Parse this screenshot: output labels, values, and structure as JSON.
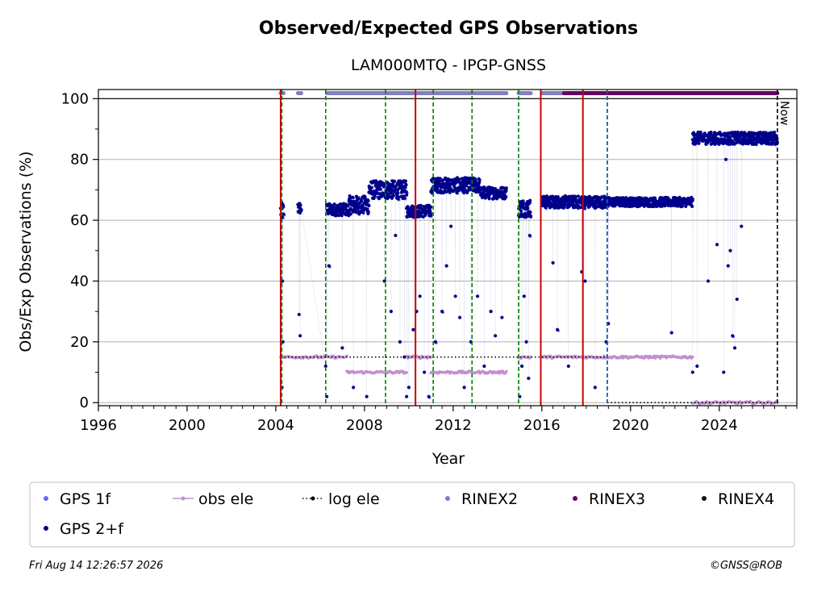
{
  "chart_data": {
    "type": "scatter",
    "title": "Observed/Expected GPS Observations",
    "subtitle": "LAM000MTQ - IPGP-GNSS",
    "xlabel": "Year",
    "ylabel": "Obs/Exp Observations (%)",
    "xlim": [
      1996,
      2027.5
    ],
    "ylim": [
      -1,
      103
    ],
    "xticks": [
      "1996",
      "2000",
      "2004",
      "2008",
      "2012",
      "2016",
      "2020",
      "2024"
    ],
    "xtick_values": [
      1996,
      2000,
      2004,
      2008,
      2012,
      2016,
      2020,
      2024
    ],
    "yticks": [
      "0",
      "20",
      "40",
      "60",
      "80",
      "100"
    ],
    "ytick_values": [
      0,
      20,
      40,
      60,
      80,
      100
    ],
    "grid": true,
    "now_label": "Now",
    "now_x": 2026.62,
    "colors": {
      "gps1f": "#6666ff",
      "gps2f": "#00008b",
      "obs_ele": "#c38fd0",
      "log_ele": "#000000",
      "rinex2": "#8080c0",
      "rinex3": "#660066",
      "rinex4": "#200020",
      "red_line": "#cc0000",
      "green_line": "#008000",
      "blue_line": "#1060b0"
    },
    "vlines": {
      "red": [
        2004.22,
        2010.3,
        2015.95,
        2017.85
      ],
      "green": [
        2004.27,
        2006.25,
        2008.95,
        2011.1,
        2012.85,
        2014.95
      ],
      "blue": [
        2018.95
      ]
    },
    "gps2f_segments": [
      {
        "x0": 2004.22,
        "x1": 2004.35,
        "mean": 63,
        "spread": 3
      },
      {
        "x0": 2005.0,
        "x1": 2005.15,
        "mean": 64,
        "spread": 2
      },
      {
        "x0": 2006.3,
        "x1": 2007.3,
        "mean": 63.5,
        "spread": 2
      },
      {
        "x0": 2007.3,
        "x1": 2008.2,
        "mean": 65,
        "spread": 3
      },
      {
        "x0": 2008.2,
        "x1": 2009.9,
        "mean": 70,
        "spread": 3
      },
      {
        "x0": 2009.9,
        "x1": 2011.0,
        "mean": 63,
        "spread": 2
      },
      {
        "x0": 2011.0,
        "x1": 2013.2,
        "mean": 71.5,
        "spread": 2.5
      },
      {
        "x0": 2013.2,
        "x1": 2014.4,
        "mean": 69,
        "spread": 2
      },
      {
        "x0": 2014.95,
        "x1": 2015.5,
        "mean": 64,
        "spread": 3
      },
      {
        "x0": 2016.0,
        "x1": 2019.0,
        "mean": 66,
        "spread": 2
      },
      {
        "x0": 2019.0,
        "x1": 2022.8,
        "mean": 66,
        "spread": 1.5
      },
      {
        "x0": 2022.8,
        "x1": 2026.62,
        "mean": 87,
        "spread": 2
      }
    ],
    "gps2f_outliers": [
      [
        2004.3,
        40
      ],
      [
        2004.28,
        5
      ],
      [
        2004.32,
        20
      ],
      [
        2005.05,
        29
      ],
      [
        2005.1,
        22
      ],
      [
        2006.25,
        12
      ],
      [
        2006.3,
        2
      ],
      [
        2006.4,
        45
      ],
      [
        2007.0,
        18
      ],
      [
        2007.5,
        5
      ],
      [
        2008.1,
        2
      ],
      [
        2008.9,
        40
      ],
      [
        2009.2,
        30
      ],
      [
        2009.4,
        55
      ],
      [
        2009.6,
        20
      ],
      [
        2009.8,
        15
      ],
      [
        2009.9,
        2
      ],
      [
        2010.0,
        5
      ],
      [
        2010.2,
        24
      ],
      [
        2010.35,
        30
      ],
      [
        2010.5,
        35
      ],
      [
        2010.7,
        10
      ],
      [
        2010.9,
        2
      ],
      [
        2011.2,
        20
      ],
      [
        2011.5,
        30
      ],
      [
        2011.7,
        45
      ],
      [
        2011.9,
        58
      ],
      [
        2012.1,
        35
      ],
      [
        2012.3,
        28
      ],
      [
        2012.5,
        5
      ],
      [
        2012.8,
        20
      ],
      [
        2013.1,
        35
      ],
      [
        2013.4,
        12
      ],
      [
        2013.7,
        30
      ],
      [
        2013.9,
        22
      ],
      [
        2014.2,
        28
      ],
      [
        2015.0,
        2
      ],
      [
        2015.1,
        12
      ],
      [
        2015.2,
        35
      ],
      [
        2015.3,
        20
      ],
      [
        2015.4,
        8
      ],
      [
        2015.45,
        55
      ],
      [
        2016.5,
        46
      ],
      [
        2016.7,
        24
      ],
      [
        2017.2,
        12
      ],
      [
        2017.8,
        43
      ],
      [
        2017.95,
        40
      ],
      [
        2018.4,
        5
      ],
      [
        2018.9,
        20
      ],
      [
        2019.0,
        26
      ],
      [
        2021.85,
        23
      ],
      [
        2022.8,
        10
      ],
      [
        2023.0,
        12
      ],
      [
        2023.5,
        40
      ],
      [
        2023.9,
        52
      ],
      [
        2024.2,
        10
      ],
      [
        2024.4,
        45
      ],
      [
        2024.5,
        50
      ],
      [
        2024.6,
        22
      ],
      [
        2024.7,
        18
      ],
      [
        2024.8,
        34
      ],
      [
        2025.0,
        58
      ],
      [
        2024.3,
        80
      ],
      [
        2023.8,
        85
      ]
    ],
    "obs_ele_segments": [
      {
        "x0": 2004.22,
        "x1": 2006.25,
        "y": 15
      },
      {
        "x0": 2006.25,
        "x1": 2007.2,
        "y": 15
      },
      {
        "x0": 2007.2,
        "x1": 2009.9,
        "y": 10
      },
      {
        "x0": 2009.9,
        "x1": 2011.0,
        "y": 15
      },
      {
        "x0": 2011.0,
        "x1": 2014.4,
        "y": 10
      },
      {
        "x0": 2014.95,
        "x1": 2015.5,
        "y": 15
      },
      {
        "x0": 2016.0,
        "x1": 2022.8,
        "y": 15
      },
      {
        "x0": 2022.8,
        "x1": 2026.62,
        "y": 0
      }
    ],
    "log_ele_segments": [
      {
        "x0": 2004.22,
        "x1": 2018.95,
        "y": 15
      },
      {
        "x0": 2018.95,
        "x1": 2026.62,
        "y": 0
      }
    ],
    "rinex_segments": [
      {
        "series": "rinex2",
        "x0": 2004.22,
        "x1": 2004.35
      },
      {
        "series": "rinex2",
        "x0": 2005.0,
        "x1": 2005.15
      },
      {
        "series": "rinex2",
        "x0": 2006.3,
        "x1": 2014.4
      },
      {
        "series": "rinex2",
        "x0": 2014.95,
        "x1": 2015.5
      },
      {
        "series": "rinex2",
        "x0": 2016.0,
        "x1": 2017.0
      },
      {
        "series": "rinex3",
        "x0": 2017.0,
        "x1": 2026.62
      }
    ],
    "rinex_y": 101.8,
    "legend": {
      "placement": "bottom",
      "entries": [
        {
          "label": "GPS 1f",
          "series": "gps1f",
          "style": "dot"
        },
        {
          "label": "obs ele",
          "series": "obs_ele",
          "style": "line-dot"
        },
        {
          "label": "log ele",
          "series": "log_ele",
          "style": "dotted-dot"
        },
        {
          "label": "RINEX2",
          "series": "rinex2",
          "style": "dot"
        },
        {
          "label": "RINEX3",
          "series": "rinex3",
          "style": "dot"
        },
        {
          "label": "RINEX4",
          "series": "rinex4",
          "style": "dot"
        },
        {
          "label": "GPS 2+f",
          "series": "gps2f",
          "style": "dot"
        }
      ]
    }
  },
  "footer": {
    "timestamp": "Fri Aug 14 12:26:57 2026",
    "credit": "©GNSS@ROB"
  }
}
